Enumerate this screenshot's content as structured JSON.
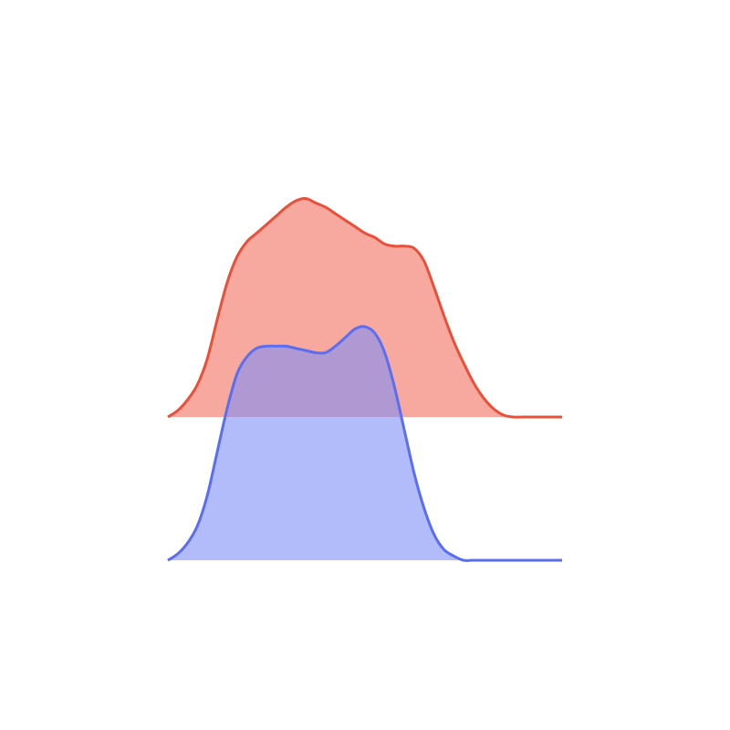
{
  "chart_data": {
    "type": "area",
    "subtype": "ridgeline",
    "title": "",
    "xlabel": "",
    "ylabel": "",
    "axes_visible": false,
    "grid": false,
    "legend": "none",
    "xlim": [
      0,
      1
    ],
    "series": [
      {
        "color_fill": "#f36f5f",
        "color_line": "#e8503a",
        "fill_opacity": 0.6,
        "baseline_offset": 1.0,
        "x": [
          0.0,
          0.025,
          0.05,
          0.075,
          0.1,
          0.125,
          0.15,
          0.175,
          0.2,
          0.225,
          0.25,
          0.275,
          0.3,
          0.325,
          0.35,
          0.375,
          0.4,
          0.425,
          0.45,
          0.475,
          0.5,
          0.525,
          0.55,
          0.575,
          0.6,
          0.625,
          0.65,
          0.675,
          0.7,
          0.725,
          0.75,
          0.775,
          0.8,
          0.825,
          0.85,
          0.875,
          0.9,
          0.925,
          0.95,
          0.975,
          1.0
        ],
        "y": [
          0.0,
          0.03,
          0.08,
          0.15,
          0.27,
          0.45,
          0.62,
          0.74,
          0.81,
          0.85,
          0.89,
          0.93,
          0.97,
          1.0,
          1.01,
          0.99,
          0.97,
          0.94,
          0.91,
          0.88,
          0.85,
          0.83,
          0.8,
          0.79,
          0.79,
          0.78,
          0.72,
          0.6,
          0.47,
          0.35,
          0.25,
          0.16,
          0.09,
          0.04,
          0.01,
          0.0,
          0.0,
          0.0,
          0.0,
          0.0,
          0.0
        ]
      },
      {
        "color_fill": "#8090f7",
        "color_line": "#5a6ef2",
        "fill_opacity": 0.6,
        "baseline_offset": 0.0,
        "x": [
          0.0,
          0.025,
          0.05,
          0.075,
          0.1,
          0.125,
          0.15,
          0.175,
          0.2,
          0.225,
          0.25,
          0.275,
          0.3,
          0.325,
          0.35,
          0.375,
          0.4,
          0.425,
          0.45,
          0.475,
          0.5,
          0.525,
          0.55,
          0.575,
          0.6,
          0.625,
          0.65,
          0.675,
          0.7,
          0.725,
          0.75,
          0.775,
          0.8,
          0.825,
          0.85,
          0.875,
          0.9,
          0.925,
          0.95,
          0.975,
          1.0
        ],
        "y": [
          0.0,
          0.03,
          0.08,
          0.16,
          0.3,
          0.5,
          0.7,
          0.86,
          0.94,
          0.98,
          0.99,
          0.99,
          0.99,
          0.98,
          0.97,
          0.96,
          0.96,
          0.99,
          1.03,
          1.07,
          1.08,
          1.05,
          0.96,
          0.8,
          0.6,
          0.4,
          0.24,
          0.12,
          0.05,
          0.02,
          0.0,
          0.0,
          0.0,
          0.0,
          0.0,
          0.0,
          0.0,
          0.0,
          0.0,
          0.0,
          0.0
        ]
      }
    ]
  }
}
